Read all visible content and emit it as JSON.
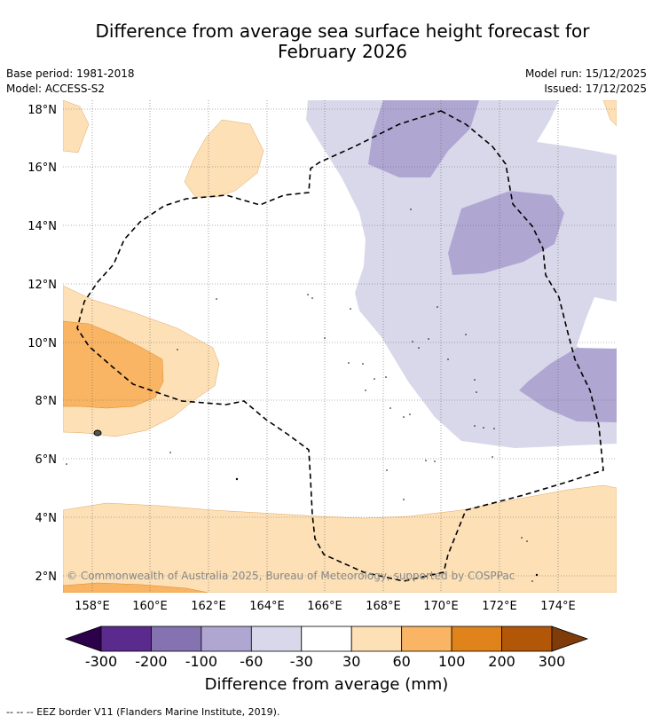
{
  "title": {
    "line1": "Difference from average sea surface height forecast for",
    "line2": "February 2026"
  },
  "meta": {
    "base_period": "Base period: 1981-2018",
    "model": "Model: ACCESS-S2",
    "model_run": "Model run: 15/12/2025",
    "issued": "Issued: 17/12/2025"
  },
  "map": {
    "lon_labels": [
      "158°E",
      "160°E",
      "162°E",
      "164°E",
      "166°E",
      "168°E",
      "170°E",
      "172°E",
      "174°E"
    ],
    "lat_labels": [
      "2°N",
      "4°N",
      "6°N",
      "8°N",
      "10°N",
      "12°N",
      "14°N",
      "16°N",
      "18°N"
    ],
    "copyright": "© Commonwealth of Australia 2025, Bureau of Meteorology, supported by COSPPac"
  },
  "colorbar": {
    "title": "Difference from average (mm)",
    "ticks": [
      "-300",
      "-200",
      "-100",
      "-60",
      "-30",
      "30",
      "60",
      "100",
      "200",
      "300"
    ],
    "colors": [
      "#2d004b",
      "#5a2a8c",
      "#8473b0",
      "#afa7d2",
      "#d8d8ea",
      "#ffffff",
      "#fde0b6",
      "#f9b563",
      "#e0831b",
      "#b25707",
      "#7f3b08"
    ]
  },
  "footer": {
    "legend_text": "--  --  -- EEZ border V11 (Flanders Marine Institute, 2019)."
  }
}
